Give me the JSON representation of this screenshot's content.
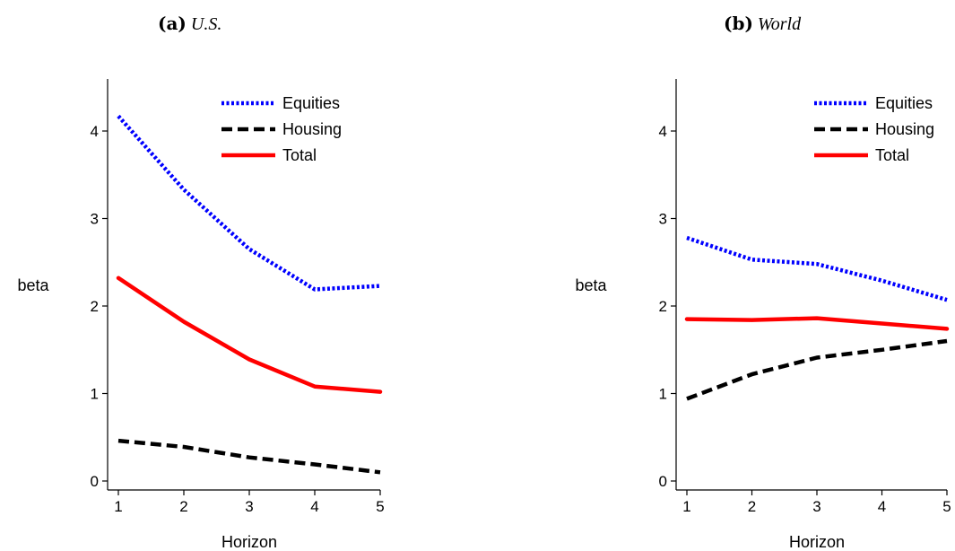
{
  "colors": {
    "equities": "#0000ff",
    "housing": "#000000",
    "total": "#ff0000"
  },
  "chart_data": [
    {
      "type": "line",
      "title_tag": "(a)",
      "title": "U.S.",
      "xlabel": "Horizon",
      "ylabel": "beta",
      "x": [
        1,
        2,
        3,
        4,
        5
      ],
      "xticks": [
        "1",
        "2",
        "3",
        "4",
        "5"
      ],
      "yticks": [
        "0",
        "1",
        "2",
        "3",
        "4"
      ],
      "ylim": [
        -0.1,
        4.6
      ],
      "legend_position": "top-right",
      "grid": false,
      "series": [
        {
          "name": "Equities",
          "style": "dotted",
          "color": "#0000ff",
          "values": [
            4.17,
            3.33,
            2.65,
            2.19,
            2.23
          ]
        },
        {
          "name": "Housing",
          "style": "dashed",
          "color": "#000000",
          "values": [
            0.46,
            0.39,
            0.27,
            0.19,
            0.1
          ]
        },
        {
          "name": "Total",
          "style": "solid",
          "color": "#ff0000",
          "values": [
            2.32,
            1.82,
            1.39,
            1.08,
            1.02
          ]
        }
      ]
    },
    {
      "type": "line",
      "title_tag": "(b)",
      "title": "World",
      "xlabel": "Horizon",
      "ylabel": "beta",
      "x": [
        1,
        2,
        3,
        4,
        5
      ],
      "xticks": [
        "1",
        "2",
        "3",
        "4",
        "5"
      ],
      "yticks": [
        "0",
        "1",
        "2",
        "3",
        "4"
      ],
      "ylim": [
        -0.1,
        4.6
      ],
      "legend_position": "top-right",
      "grid": false,
      "series": [
        {
          "name": "Equities",
          "style": "dotted",
          "color": "#0000ff",
          "values": [
            2.78,
            2.53,
            2.48,
            2.29,
            2.07
          ]
        },
        {
          "name": "Housing",
          "style": "dashed",
          "color": "#000000",
          "values": [
            0.94,
            1.22,
            1.41,
            1.5,
            1.6
          ]
        },
        {
          "name": "Total",
          "style": "solid",
          "color": "#ff0000",
          "values": [
            1.85,
            1.84,
            1.86,
            1.8,
            1.74
          ]
        }
      ]
    }
  ]
}
